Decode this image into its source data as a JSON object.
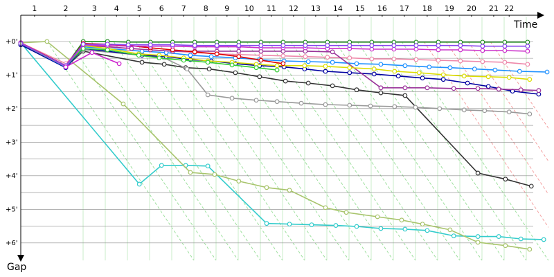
{
  "chart_data": {
    "type": "line",
    "x_label": "Time",
    "y_label": "Gap",
    "xlim": [
      0,
      15.7
    ],
    "ylim": [
      -0.74,
      6.52
    ],
    "y_inverted": true,
    "grid": true,
    "xticks": [
      {
        "value": 0.41,
        "label": "1"
      },
      {
        "value": 1.34,
        "label": "2"
      },
      {
        "value": 2.19,
        "label": "3"
      },
      {
        "value": 2.85,
        "label": "4"
      },
      {
        "value": 3.53,
        "label": "5"
      },
      {
        "value": 4.19,
        "label": "6"
      },
      {
        "value": 4.85,
        "label": "7"
      },
      {
        "value": 5.51,
        "label": "8"
      },
      {
        "value": 6.14,
        "label": "9"
      },
      {
        "value": 6.8,
        "label": "10"
      },
      {
        "value": 7.46,
        "label": "11"
      },
      {
        "value": 8.12,
        "label": "12"
      },
      {
        "value": 8.78,
        "label": "13"
      },
      {
        "value": 9.44,
        "label": "14"
      },
      {
        "value": 10.1,
        "label": "15"
      },
      {
        "value": 10.76,
        "label": "16"
      },
      {
        "value": 11.42,
        "label": "17"
      },
      {
        "value": 12.1,
        "label": "18"
      },
      {
        "value": 12.76,
        "label": "19"
      },
      {
        "value": 13.42,
        "label": "20"
      },
      {
        "value": 14.08,
        "label": "21"
      },
      {
        "value": 14.54,
        "label": "22"
      }
    ],
    "yticks": [
      {
        "value": 0,
        "label": "+0'"
      },
      {
        "value": 1,
        "label": "+1'"
      },
      {
        "value": 2,
        "label": "+2'"
      },
      {
        "value": 3,
        "label": "+3'"
      },
      {
        "value": 4,
        "label": "+4'"
      },
      {
        "value": 5,
        "label": "+5'"
      },
      {
        "value": 6,
        "label": "+6'"
      }
    ],
    "minor_yticks": [
      0.5,
      1.5,
      2.5,
      3.5,
      4.5,
      5.5
    ],
    "series": [
      {
        "color": "#33cccc",
        "x": [
          0,
          3.53,
          4.19,
          4.91,
          5.57,
          7.32,
          8.0,
          8.66,
          9.38,
          10.0,
          10.72,
          11.44,
          12.1,
          12.89,
          13.61,
          14.23,
          14.89,
          15.57
        ],
        "values": [
          0.04,
          4.25,
          3.69,
          3.69,
          3.71,
          5.42,
          5.44,
          5.46,
          5.48,
          5.51,
          5.57,
          5.59,
          5.63,
          5.79,
          5.81,
          5.81,
          5.88,
          5.9
        ]
      },
      {
        "color": "#a8c46c",
        "x": [
          0,
          0.78,
          3.05,
          5.05,
          5.77,
          6.49,
          7.32,
          8.0,
          9.07,
          9.69,
          10.62,
          11.34,
          11.96,
          12.78,
          13.61,
          14.43,
          15.15
        ],
        "values": [
          0.04,
          0,
          1.86,
          3.9,
          3.96,
          4.16,
          4.35,
          4.43,
          4.95,
          5.09,
          5.22,
          5.32,
          5.44,
          5.61,
          5.98,
          6.08,
          6.19
        ]
      },
      {
        "color": "#333333",
        "x": [
          0,
          1.34,
          1.86,
          3.61,
          4.27,
          4.91,
          5.61,
          6.39,
          7.11,
          7.88,
          8.56,
          9.28,
          10.0,
          10.72,
          11.44,
          13.61,
          14.43,
          15.2
        ],
        "values": [
          0.1,
          0.76,
          0.29,
          0.62,
          0.68,
          0.78,
          0.82,
          0.93,
          1.05,
          1.18,
          1.24,
          1.32,
          1.44,
          1.53,
          1.61,
          3.92,
          4.1,
          4.31
        ]
      },
      {
        "color": "#999999",
        "x": [
          0,
          1.34,
          1.86,
          3.61,
          4.27,
          4.95,
          5.57,
          6.29,
          7.01,
          7.63,
          8.35,
          9.07,
          9.79,
          10.41,
          11.13,
          11.75,
          12.47,
          13.2,
          13.81,
          14.54,
          15.15
        ],
        "values": [
          0.1,
          0.76,
          0.25,
          0.41,
          0.49,
          0.82,
          1.59,
          1.69,
          1.75,
          1.79,
          1.84,
          1.88,
          1.9,
          1.92,
          1.94,
          1.96,
          2.0,
          2.04,
          2.06,
          2.1,
          2.16
        ]
      },
      {
        "color": "#228b22",
        "x": [
          0,
          1.34,
          1.86,
          2.58,
          3.2,
          3.86,
          4.52,
          5.18,
          5.84,
          6.49,
          7.15,
          7.81,
          8.47,
          9.13,
          9.79,
          10.45,
          11.11,
          11.77,
          12.43,
          13.09,
          13.75,
          14.41,
          15.09
        ],
        "values": [
          0.04,
          0.72,
          0,
          0,
          0.02,
          0.02,
          0.02,
          0.02,
          0.02,
          0.02,
          0.02,
          0.02,
          0.02,
          0.02,
          0.02,
          0.02,
          0.02,
          0.02,
          0.02,
          0.02,
          0.02,
          0.02,
          0.02
        ]
      },
      {
        "color": "#0000a0",
        "x": [
          0,
          1.34,
          1.86,
          3.61,
          4.33,
          5.05,
          5.67,
          6.39,
          7.11,
          7.84,
          8.45,
          9.07,
          9.79,
          10.52,
          11.24,
          11.96,
          12.58,
          13.3,
          13.92,
          14.64,
          15.42
        ],
        "values": [
          0.1,
          0.78,
          0.21,
          0.41,
          0.45,
          0.54,
          0.58,
          0.66,
          0.72,
          0.76,
          0.82,
          0.89,
          0.93,
          0.97,
          1.03,
          1.09,
          1.13,
          1.24,
          1.34,
          1.48,
          1.57
        ]
      },
      {
        "color": "#1e90ff",
        "x": [
          0,
          1.34,
          1.86,
          3.61,
          4.33,
          5.05,
          5.67,
          6.39,
          7.11,
          7.84,
          8.56,
          9.28,
          10.0,
          10.72,
          11.44,
          12.16,
          12.78,
          13.51,
          14.12,
          14.85,
          15.67
        ],
        "values": [
          0.06,
          0.76,
          0.16,
          0.29,
          0.33,
          0.41,
          0.45,
          0.49,
          0.54,
          0.58,
          0.6,
          0.62,
          0.66,
          0.68,
          0.72,
          0.76,
          0.78,
          0.82,
          0.85,
          0.89,
          0.91
        ]
      },
      {
        "color": "#ee88aa",
        "x": [
          0,
          1.34,
          1.86,
          2.58,
          3.2,
          3.86,
          4.52,
          5.18,
          5.84,
          6.49,
          7.15,
          7.81,
          8.47,
          9.13,
          9.79,
          10.45,
          11.11,
          11.77,
          12.43,
          13.09,
          13.75,
          14.41,
          15.09
        ],
        "values": [
          0.04,
          0.66,
          0.12,
          0.16,
          0.21,
          0.25,
          0.29,
          0.33,
          0.37,
          0.39,
          0.41,
          0.43,
          0.45,
          0.47,
          0.49,
          0.52,
          0.52,
          0.54,
          0.56,
          0.58,
          0.6,
          0.62,
          0.68
        ]
      },
      {
        "color": "#993399",
        "x": [
          0,
          1.34,
          1.86,
          2.58,
          3.3,
          3.86,
          4.52,
          5.18,
          5.84,
          6.49,
          7.15,
          7.81,
          8.47,
          9.28,
          10.72,
          11.44,
          12.1,
          12.89,
          13.61,
          14.23,
          14.89,
          15.42
        ],
        "values": [
          0.04,
          0.74,
          0.12,
          0.16,
          0.21,
          0.25,
          0.29,
          0.29,
          0.29,
          0.29,
          0.29,
          0.29,
          0.29,
          0.31,
          1.38,
          1.38,
          1.38,
          1.4,
          1.4,
          1.42,
          1.44,
          1.46
        ]
      },
      {
        "color": "#dddd00",
        "x": [
          0,
          1.34,
          1.86,
          2.58,
          3.51,
          4.12,
          4.85,
          5.57,
          6.29,
          7.01,
          7.63,
          8.45,
          9.07,
          9.79,
          10.52,
          11.13,
          11.86,
          12.58,
          13.2,
          13.92,
          14.54,
          15.15
        ],
        "values": [
          0.06,
          0.74,
          0.12,
          0.21,
          0.37,
          0.41,
          0.49,
          0.58,
          0.62,
          0.68,
          0.72,
          0.72,
          0.74,
          0.78,
          0.82,
          0.89,
          0.93,
          0.99,
          1.03,
          1.05,
          1.07,
          1.13
        ]
      },
      {
        "color": "#33cc33",
        "x": [
          0,
          1.34,
          1.86,
          2.58,
          3.51,
          4.12,
          4.85,
          5.57,
          6.29,
          7.01,
          7.63
        ],
        "values": [
          0.06,
          0.72,
          0.21,
          0.25,
          0.41,
          0.49,
          0.56,
          0.62,
          0.7,
          0.78,
          0.85
        ]
      },
      {
        "color": "#dd0000",
        "x": [
          0,
          1.34,
          1.86,
          2.58,
          3.2,
          3.86,
          4.52,
          5.18,
          5.84,
          6.49,
          7.15,
          7.81
        ],
        "values": [
          0.04,
          0.72,
          0.06,
          0.08,
          0.12,
          0.19,
          0.25,
          0.31,
          0.37,
          0.45,
          0.56,
          0.66
        ]
      },
      {
        "color": "#cc33cc",
        "x": [
          0,
          1.34,
          1.86,
          2.58,
          3.2,
          3.86,
          4.52,
          5.18,
          5.84,
          6.49,
          7.15,
          7.81,
          8.47,
          9.13,
          9.79,
          10.45,
          11.11,
          11.77,
          12.43,
          13.09,
          13.75,
          14.41,
          15.09
        ],
        "values": [
          0.04,
          0.74,
          0.1,
          0.12,
          0.14,
          0.14,
          0.14,
          0.16,
          0.16,
          0.16,
          0.19,
          0.19,
          0.19,
          0.21,
          0.21,
          0.23,
          0.23,
          0.23,
          0.25,
          0.25,
          0.27,
          0.27,
          0.29
        ]
      },
      {
        "color": "#8844ee",
        "x": [
          0,
          1.34,
          1.86,
          2.58,
          3.2,
          3.86,
          4.52,
          5.18,
          5.84,
          6.49,
          7.15,
          7.81,
          8.47,
          9.13,
          9.79,
          10.45,
          11.11,
          11.77,
          12.43,
          13.09,
          13.75,
          14.41,
          15.09
        ],
        "values": [
          0.06,
          0.72,
          0.08,
          0.08,
          0.1,
          0.1,
          0.1,
          0.12,
          0.12,
          0.12,
          0.12,
          0.12,
          0.12,
          0.12,
          0.12,
          0.12,
          0.12,
          0.12,
          0.12,
          0.12,
          0.14,
          0.14,
          0.14
        ]
      },
      {
        "color": "#cc22cc",
        "x": [
          1.34,
          2.12,
          2.93
        ],
        "values": [
          0.76,
          0.33,
          0.66
        ]
      }
    ]
  }
}
